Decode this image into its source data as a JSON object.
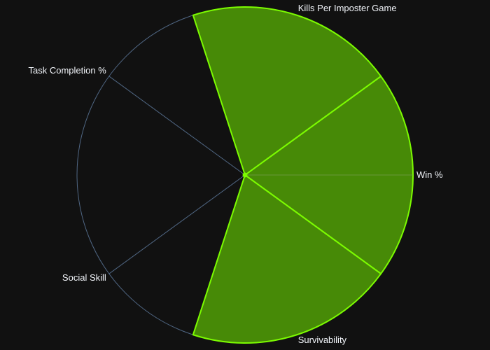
{
  "chart_data": {
    "type": "radar",
    "subtype": "barpolar",
    "axes": [
      "Win %",
      "Kills Per Imposter Game",
      "Task Completion %",
      "Social Skill",
      "Survivability"
    ],
    "values": [
      100,
      100,
      0,
      0,
      100
    ],
    "range": [
      0,
      100
    ],
    "grid": true,
    "colors": {
      "background": "#111111",
      "grid": "#506784",
      "fill": "#478a07",
      "outline": "#7cfc00",
      "label": "#f2f5fa"
    }
  }
}
